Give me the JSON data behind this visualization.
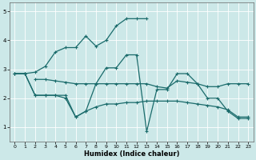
{
  "xlabel": "Humidex (Indice chaleur)",
  "bg_color": "#cce8e8",
  "line_color": "#1a6b6b",
  "xlim": [
    -0.5,
    23.5
  ],
  "ylim": [
    0.5,
    5.3
  ],
  "yticks": [
    1,
    2,
    3,
    4,
    5
  ],
  "xticks": [
    0,
    1,
    2,
    3,
    4,
    5,
    6,
    7,
    8,
    9,
    10,
    11,
    12,
    13,
    14,
    15,
    16,
    17,
    18,
    19,
    20,
    21,
    22,
    23
  ],
  "series": [
    {
      "x": [
        0,
        1,
        2,
        3,
        4,
        5,
        6,
        7,
        8,
        9,
        10,
        11,
        12,
        13
      ],
      "y": [
        2.85,
        2.85,
        2.9,
        3.1,
        3.6,
        3.75,
        3.75,
        4.15,
        3.8,
        4.0,
        4.5,
        4.75,
        4.75,
        4.75
      ]
    },
    {
      "x": [
        0,
        1,
        2,
        3,
        4,
        5,
        6,
        7,
        8,
        9,
        10,
        11,
        12,
        13,
        14,
        15,
        16,
        17,
        18,
        19,
        20,
        21,
        22,
        23
      ],
      "y": [
        2.85,
        2.85,
        2.1,
        2.1,
        2.1,
        2.0,
        1.35,
        1.55,
        2.5,
        3.05,
        3.05,
        3.5,
        3.5,
        0.85,
        2.3,
        2.3,
        2.85,
        2.85,
        2.5,
        2.0,
        2.0,
        1.55,
        1.3,
        1.3
      ]
    },
    {
      "x": [
        2,
        3,
        4,
        5,
        6,
        7,
        8,
        9,
        10,
        11,
        12,
        13,
        14,
        15,
        16,
        17,
        18,
        19,
        20,
        21,
        22,
        23
      ],
      "y": [
        2.65,
        2.65,
        2.6,
        2.55,
        2.5,
        2.5,
        2.5,
        2.5,
        2.5,
        2.5,
        2.5,
        2.5,
        2.4,
        2.35,
        2.6,
        2.55,
        2.5,
        2.4,
        2.4,
        2.5,
        2.5,
        2.5
      ]
    },
    {
      "x": [
        0,
        1,
        2,
        3,
        4,
        5,
        6,
        7,
        8,
        9,
        10,
        11,
        12,
        13,
        14,
        15,
        16,
        17,
        18,
        19,
        20,
        21,
        22,
        23
      ],
      "y": [
        2.85,
        2.85,
        2.1,
        2.1,
        2.1,
        2.1,
        1.35,
        1.55,
        1.7,
        1.8,
        1.8,
        1.85,
        1.85,
        1.9,
        1.9,
        1.9,
        1.9,
        1.85,
        1.8,
        1.75,
        1.7,
        1.6,
        1.35,
        1.35
      ]
    }
  ]
}
